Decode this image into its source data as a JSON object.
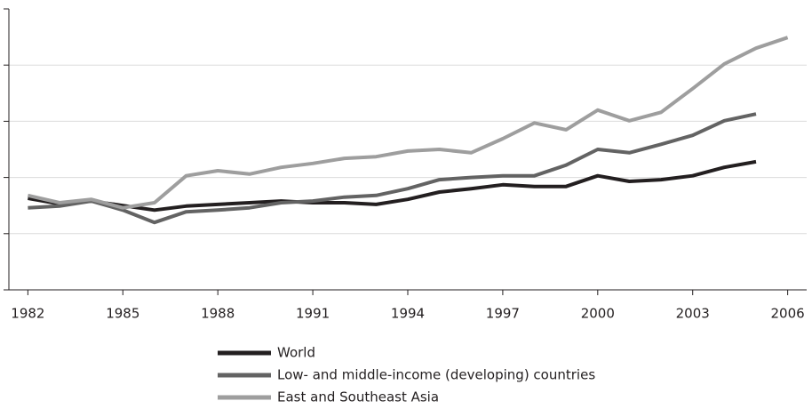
{
  "chart_data": {
    "type": "line",
    "x": [
      1982,
      1983,
      1984,
      1985,
      1986,
      1987,
      1988,
      1989,
      1990,
      1991,
      1992,
      1993,
      1994,
      1995,
      1996,
      1997,
      1998,
      1999,
      2000,
      2001,
      2002,
      2003,
      2004,
      2005,
      2006
    ],
    "series": [
      {
        "name": "World",
        "color": "#231f20",
        "values": [
          1.63,
          1.53,
          1.58,
          1.5,
          1.42,
          1.49,
          1.52,
          1.55,
          1.58,
          1.55,
          1.55,
          1.52,
          1.61,
          1.74,
          1.8,
          1.87,
          1.84,
          1.84,
          2.03,
          1.93,
          1.96,
          2.03,
          2.18,
          2.28,
          null
        ]
      },
      {
        "name": "Low- and middle-income (developing) countries",
        "color": "#636363",
        "values": [
          1.46,
          1.49,
          1.58,
          1.42,
          1.2,
          1.39,
          1.42,
          1.46,
          1.55,
          1.58,
          1.65,
          1.68,
          1.8,
          1.96,
          2.0,
          2.03,
          2.03,
          2.22,
          2.5,
          2.44,
          2.59,
          2.75,
          3.01,
          3.13,
          null
        ]
      },
      {
        "name": "East and Southeast Asia",
        "color": "#9e9e9e",
        "values": [
          1.68,
          1.55,
          1.61,
          1.46,
          1.55,
          2.03,
          2.12,
          2.06,
          2.18,
          2.25,
          2.34,
          2.37,
          2.47,
          2.5,
          2.44,
          2.69,
          2.97,
          2.85,
          3.2,
          3.01,
          3.16,
          3.58,
          4.02,
          4.3,
          4.49
        ]
      }
    ],
    "xlim": [
      1981.4,
      2006.6
    ],
    "xticks": [
      1982,
      1985,
      1988,
      1991,
      1994,
      1997,
      2000,
      2003,
      2006
    ],
    "ylim": [
      0,
      5
    ],
    "yticks": [
      0,
      1,
      2,
      3,
      4,
      5
    ],
    "grid": true
  }
}
